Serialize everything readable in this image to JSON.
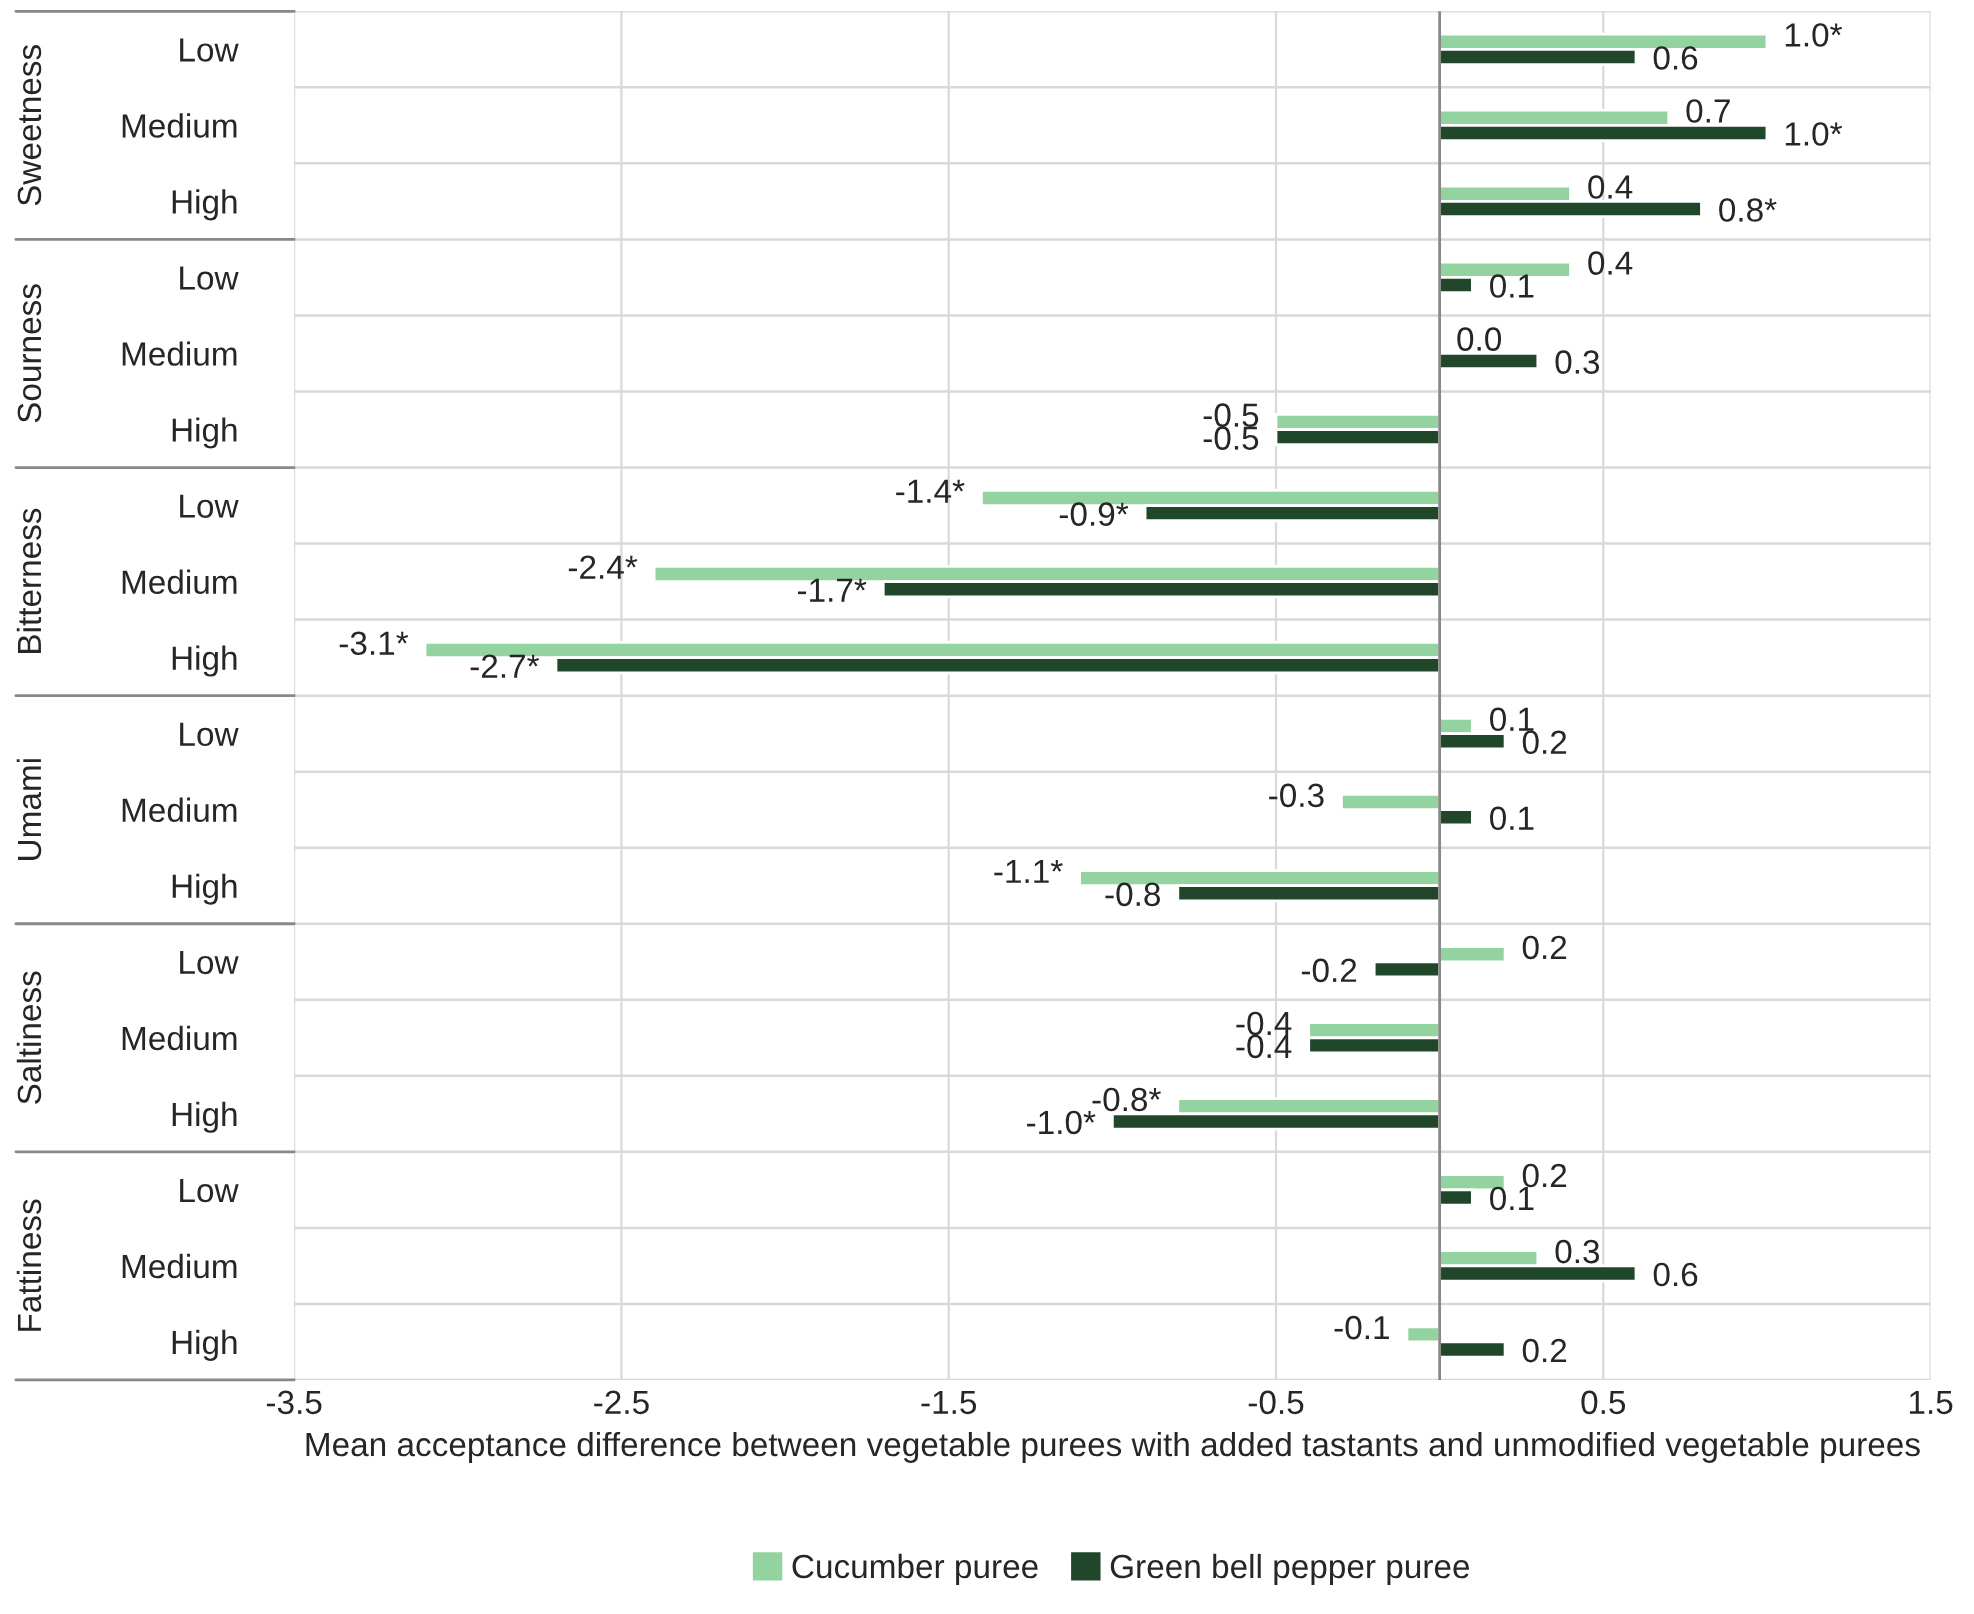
{
  "chart_data": {
    "type": "bar",
    "orientation": "horizontal",
    "categories": [
      "Low",
      "Medium",
      "High",
      "Low",
      "Medium",
      "High",
      "Low",
      "Medium",
      "High",
      "Low",
      "Medium",
      "High",
      "Low",
      "Medium",
      "High",
      "Low",
      "Medium",
      "High"
    ],
    "annotations": [
      "Sweetness",
      "Sourness",
      "Bitterness",
      "Umami",
      "Saltiness",
      "Fattiness"
    ],
    "series": [
      {
        "name": "Cucumber puree",
        "color": "#92d3a0",
        "values": [
          1.0,
          0.7,
          0.4,
          0.4,
          0.0,
          -0.5,
          -1.4,
          -2.4,
          -3.1,
          0.1,
          -0.3,
          -1.1,
          0.2,
          -0.4,
          -0.8,
          0.2,
          0.3,
          -0.1
        ],
        "value_labels": [
          "1.0*",
          "0.7",
          "0.4",
          "0.4",
          "0.0",
          "-0.5",
          "-1.4*",
          "-2.4*",
          "-3.1*",
          "0.1",
          "-0.3",
          "-1.1*",
          "0.2",
          "-0.4",
          "-0.8*",
          "0.2",
          "0.3",
          "-0.1"
        ]
      },
      {
        "name": "Green bell pepper puree",
        "color": "#21472b",
        "values": [
          0.6,
          1.0,
          0.8,
          0.1,
          0.3,
          -0.5,
          -0.9,
          -1.7,
          -2.7,
          0.2,
          0.1,
          -0.8,
          -0.2,
          -0.4,
          -1.0,
          0.1,
          0.6,
          0.2
        ],
        "value_labels": [
          "0.6",
          "1.0*",
          "0.8*",
          "0.1",
          "0.3",
          "-0.5",
          "-0.9*",
          "-1.7*",
          "-2.7*",
          "0.2",
          "0.1",
          "-0.8",
          "-0.2",
          "-0.4",
          "-1.0*",
          "0.1",
          "0.6",
          "0.2"
        ]
      }
    ],
    "xlabel": "Mean acceptance difference between vegetable purees with added tastants and unmodified vegetable purees",
    "xlim": [
      -3.5,
      1.5
    ],
    "xticks": [
      -3.5,
      -2.5,
      -1.5,
      -0.5,
      0.5,
      1.5
    ],
    "grid": true,
    "legend": "bottom"
  }
}
